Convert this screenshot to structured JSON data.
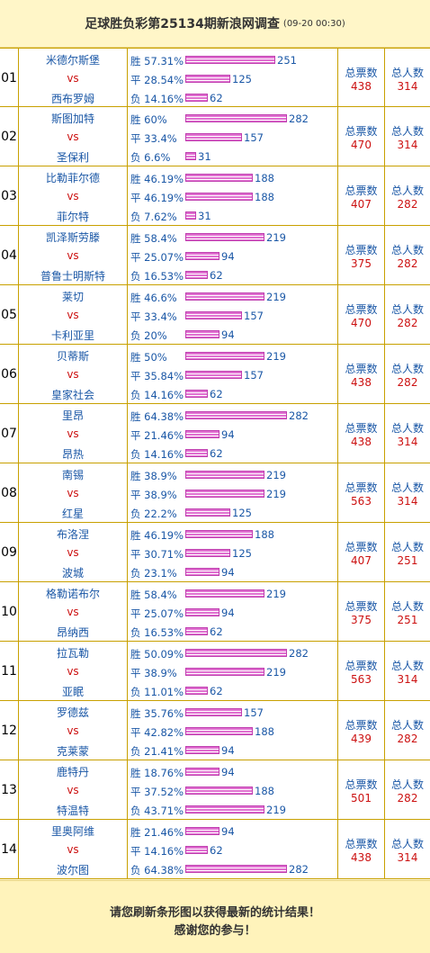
{
  "header": {
    "title": "足球胜负彩第25134期新浪网调查",
    "timestamp": "(09-20 00:30)"
  },
  "labels": {
    "win": "胜",
    "draw": "平",
    "loss": "负",
    "vs": "vs",
    "total_votes": "总票数",
    "total_people": "总人数"
  },
  "matches": [
    {
      "num": "01",
      "home": "米德尔斯堡",
      "away": "西布罗姆",
      "win": {
        "pct": "57.31%",
        "count": 251
      },
      "draw": {
        "pct": "28.54%",
        "count": 125
      },
      "loss": {
        "pct": "14.16%",
        "count": 62
      },
      "votes": "438",
      "people": "314"
    },
    {
      "num": "02",
      "home": "斯图加特",
      "away": "圣保利",
      "win": {
        "pct": "60%",
        "count": 282
      },
      "draw": {
        "pct": "33.4%",
        "count": 157
      },
      "loss": {
        "pct": "6.6%",
        "count": 31
      },
      "votes": "470",
      "people": "314"
    },
    {
      "num": "03",
      "home": "比勒菲尔德",
      "away": "菲尔特",
      "win": {
        "pct": "46.19%",
        "count": 188
      },
      "draw": {
        "pct": "46.19%",
        "count": 188
      },
      "loss": {
        "pct": "7.62%",
        "count": 31
      },
      "votes": "407",
      "people": "282"
    },
    {
      "num": "04",
      "home": "凯泽斯劳滕",
      "away": "普鲁士明斯特",
      "win": {
        "pct": "58.4%",
        "count": 219
      },
      "draw": {
        "pct": "25.07%",
        "count": 94
      },
      "loss": {
        "pct": "16.53%",
        "count": 62
      },
      "votes": "375",
      "people": "282"
    },
    {
      "num": "05",
      "home": "莱切",
      "away": "卡利亚里",
      "win": {
        "pct": "46.6%",
        "count": 219
      },
      "draw": {
        "pct": "33.4%",
        "count": 157
      },
      "loss": {
        "pct": "20%",
        "count": 94
      },
      "votes": "470",
      "people": "282"
    },
    {
      "num": "06",
      "home": "贝蒂斯",
      "away": "皇家社会",
      "win": {
        "pct": "50%",
        "count": 219
      },
      "draw": {
        "pct": "35.84%",
        "count": 157
      },
      "loss": {
        "pct": "14.16%",
        "count": 62
      },
      "votes": "438",
      "people": "282"
    },
    {
      "num": "07",
      "home": "里昂",
      "away": "昂热",
      "win": {
        "pct": "64.38%",
        "count": 282
      },
      "draw": {
        "pct": "21.46%",
        "count": 94
      },
      "loss": {
        "pct": "14.16%",
        "count": 62
      },
      "votes": "438",
      "people": "314"
    },
    {
      "num": "08",
      "home": "南锡",
      "away": "红星",
      "win": {
        "pct": "38.9%",
        "count": 219
      },
      "draw": {
        "pct": "38.9%",
        "count": 219
      },
      "loss": {
        "pct": "22.2%",
        "count": 125
      },
      "votes": "563",
      "people": "314"
    },
    {
      "num": "09",
      "home": "布洛涅",
      "away": "波城",
      "win": {
        "pct": "46.19%",
        "count": 188
      },
      "draw": {
        "pct": "30.71%",
        "count": 125
      },
      "loss": {
        "pct": "23.1%",
        "count": 94
      },
      "votes": "407",
      "people": "251"
    },
    {
      "num": "10",
      "home": "格勒诺布尔",
      "away": "昂纳西",
      "win": {
        "pct": "58.4%",
        "count": 219
      },
      "draw": {
        "pct": "25.07%",
        "count": 94
      },
      "loss": {
        "pct": "16.53%",
        "count": 62
      },
      "votes": "375",
      "people": "251"
    },
    {
      "num": "11",
      "home": "拉瓦勒",
      "away": "亚眠",
      "win": {
        "pct": "50.09%",
        "count": 282
      },
      "draw": {
        "pct": "38.9%",
        "count": 219
      },
      "loss": {
        "pct": "11.01%",
        "count": 62
      },
      "votes": "563",
      "people": "314"
    },
    {
      "num": "12",
      "home": "罗德兹",
      "away": "克莱蒙",
      "win": {
        "pct": "35.76%",
        "count": 157
      },
      "draw": {
        "pct": "42.82%",
        "count": 188
      },
      "loss": {
        "pct": "21.41%",
        "count": 94
      },
      "votes": "439",
      "people": "282"
    },
    {
      "num": "13",
      "home": "鹿特丹",
      "away": "特温特",
      "win": {
        "pct": "18.76%",
        "count": 94
      },
      "draw": {
        "pct": "37.52%",
        "count": 188
      },
      "loss": {
        "pct": "43.71%",
        "count": 219
      },
      "votes": "501",
      "people": "282"
    },
    {
      "num": "14",
      "home": "里奥阿维",
      "away": "波尔图",
      "win": {
        "pct": "21.46%",
        "count": 94
      },
      "draw": {
        "pct": "14.16%",
        "count": 62
      },
      "loss": {
        "pct": "64.38%",
        "count": 282
      },
      "votes": "438",
      "people": "314"
    }
  ],
  "footer": {
    "line1": "请您刷新条形图以获得最新的统计结果！",
    "line2": "感谢您的参与！"
  },
  "colors": {
    "bar": "#e070d0",
    "team": "#1a57a6",
    "vs": "#cc1111"
  }
}
